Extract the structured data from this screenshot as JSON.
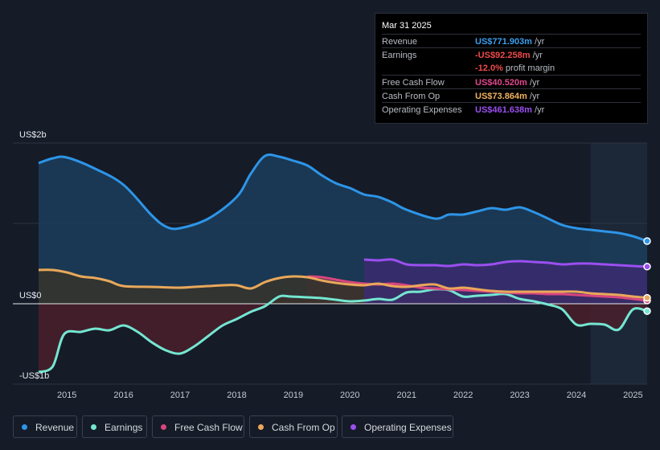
{
  "tooltip": {
    "date": "Mar 31 2025",
    "rows": [
      {
        "label": "Revenue",
        "value": "US$771.903m",
        "unit": "/yr",
        "color": "#3aa0ef"
      },
      {
        "label": "Earnings",
        "value": "-US$92.258m",
        "unit": "/yr",
        "color": "#ef4a4a"
      },
      {
        "label": "",
        "value": "-12.0%",
        "unit": "profit margin",
        "color": "#ef4a4a"
      },
      {
        "label": "Free Cash Flow",
        "value": "US$40.520m",
        "unit": "/yr",
        "color": "#e0488d"
      },
      {
        "label": "Cash From Op",
        "value": "US$73.864m",
        "unit": "/yr",
        "color": "#f0b060"
      },
      {
        "label": "Operating Expenses",
        "value": "US$461.638m",
        "unit": "/yr",
        "color": "#9b4ff0"
      }
    ]
  },
  "legend": [
    {
      "label": "Revenue",
      "color": "#2d95e8"
    },
    {
      "label": "Earnings",
      "color": "#74e6d1"
    },
    {
      "label": "Free Cash Flow",
      "color": "#d8467f"
    },
    {
      "label": "Cash From Op",
      "color": "#e9a85a"
    },
    {
      "label": "Operating Expenses",
      "color": "#9b4ff0"
    }
  ],
  "chart_data": {
    "type": "area",
    "y_unit": "US$ millions",
    "ylim": [
      -1000,
      2000
    ],
    "y_tick_labels": [
      {
        "value": 2000,
        "label": "US$2b"
      },
      {
        "value": 0,
        "label": "US$0"
      },
      {
        "value": -1000,
        "label": "-US$1b"
      }
    ],
    "xlim": [
      2014.5,
      2025.25
    ],
    "x_ticks": [
      2015,
      2016,
      2017,
      2018,
      2019,
      2020,
      2021,
      2022,
      2023,
      2024,
      2025
    ],
    "x_tick_labels": [
      "2015",
      "2016",
      "2017",
      "2018",
      "2019",
      "2020",
      "2021",
      "2022",
      "2023",
      "2024",
      "2025"
    ],
    "forecast_start": 2024.25,
    "series": [
      {
        "name": "Revenue",
        "color": "#2d95e8",
        "fill": "#1b3d5c",
        "x": [
          2014.5,
          2014.75,
          2015.0,
          2015.5,
          2016.0,
          2016.5,
          2016.75,
          2017.0,
          2017.5,
          2018.0,
          2018.25,
          2018.5,
          2018.75,
          2019.0,
          2019.25,
          2019.5,
          2019.75,
          2020.0,
          2020.25,
          2020.5,
          2020.75,
          2021.0,
          2021.5,
          2021.75,
          2022.0,
          2022.25,
          2022.5,
          2022.75,
          2023.0,
          2023.25,
          2023.5,
          2023.75,
          2024.0,
          2024.25,
          2024.5,
          2024.75,
          2025.0,
          2025.25
        ],
        "values": [
          1750,
          1810,
          1820,
          1680,
          1480,
          1100,
          960,
          940,
          1060,
          1330,
          1620,
          1840,
          1830,
          1780,
          1720,
          1600,
          1500,
          1440,
          1360,
          1330,
          1260,
          1170,
          1060,
          1110,
          1110,
          1150,
          1190,
          1170,
          1200,
          1140,
          1060,
          980,
          940,
          920,
          900,
          880,
          840,
          780
        ]
      },
      {
        "name": "Earnings",
        "color": "#74e6d1",
        "fill": "#4a1f2c",
        "x": [
          2014.5,
          2014.75,
          2014.95,
          2015.25,
          2015.5,
          2015.75,
          2016.0,
          2016.25,
          2016.5,
          2016.75,
          2017.0,
          2017.25,
          2017.5,
          2017.75,
          2018.0,
          2018.25,
          2018.5,
          2018.75,
          2018.95,
          2019.25,
          2019.5,
          2019.75,
          2020.0,
          2020.25,
          2020.5,
          2020.75,
          2021.0,
          2021.25,
          2021.5,
          2021.75,
          2022.0,
          2022.25,
          2022.5,
          2022.75,
          2023.0,
          2023.25,
          2023.5,
          2023.75,
          2024.0,
          2024.25,
          2024.5,
          2024.75,
          2025.0,
          2025.25
        ],
        "values": [
          -850,
          -780,
          -380,
          -350,
          -310,
          -330,
          -270,
          -350,
          -480,
          -580,
          -620,
          -530,
          -400,
          -270,
          -190,
          -100,
          -30,
          90,
          90,
          80,
          70,
          50,
          30,
          40,
          60,
          50,
          140,
          150,
          180,
          170,
          90,
          100,
          110,
          120,
          60,
          30,
          -10,
          -70,
          -260,
          -250,
          -260,
          -320,
          -70,
          -92
        ]
      },
      {
        "name": "Free Cash Flow",
        "color": "#d8467f",
        "fill": "#5a2b45",
        "x": [
          2019.25,
          2019.5,
          2019.75,
          2020.0,
          2020.25,
          2020.5,
          2020.75,
          2021.0,
          2021.25,
          2021.5,
          2021.75,
          2022.0,
          2022.25,
          2022.5,
          2022.75,
          2023.0,
          2023.25,
          2023.5,
          2023.75,
          2024.0,
          2024.25,
          2024.5,
          2024.75,
          2025.0,
          2025.25
        ],
        "values": [
          340,
          330,
          300,
          270,
          250,
          240,
          250,
          230,
          200,
          190,
          180,
          170,
          160,
          150,
          140,
          130,
          130,
          120,
          120,
          110,
          100,
          90,
          80,
          60,
          40
        ]
      },
      {
        "name": "Cash From Op",
        "color": "#e9a85a",
        "fill": "#36342c",
        "x": [
          2014.5,
          2014.75,
          2015.0,
          2015.25,
          2015.5,
          2015.75,
          2016.0,
          2016.5,
          2017.0,
          2017.25,
          2017.5,
          2017.75,
          2018.0,
          2018.25,
          2018.5,
          2018.75,
          2019.0,
          2019.25,
          2019.5,
          2019.75,
          2020.0,
          2020.25,
          2020.5,
          2020.75,
          2021.0,
          2021.25,
          2021.5,
          2021.75,
          2022.0,
          2022.25,
          2022.5,
          2022.75,
          2023.0,
          2023.25,
          2023.5,
          2023.75,
          2024.0,
          2024.25,
          2024.5,
          2024.75,
          2025.0,
          2025.25
        ],
        "values": [
          420,
          420,
          390,
          340,
          320,
          280,
          220,
          210,
          200,
          210,
          220,
          230,
          230,
          190,
          270,
          320,
          340,
          330,
          290,
          260,
          240,
          230,
          250,
          220,
          210,
          230,
          240,
          190,
          200,
          180,
          160,
          150,
          150,
          150,
          150,
          150,
          150,
          130,
          120,
          110,
          90,
          74
        ]
      },
      {
        "name": "Operating Expenses",
        "color": "#9b4ff0",
        "fill": "#3b2c70",
        "x": [
          2020.25,
          2020.5,
          2020.75,
          2021.0,
          2021.25,
          2021.5,
          2021.75,
          2022.0,
          2022.25,
          2022.5,
          2022.75,
          2023.0,
          2023.25,
          2023.5,
          2023.75,
          2024.0,
          2024.25,
          2024.5,
          2024.75,
          2025.0,
          2025.25
        ],
        "values": [
          550,
          540,
          550,
          490,
          480,
          480,
          470,
          490,
          480,
          490,
          520,
          530,
          520,
          510,
          490,
          500,
          500,
          490,
          480,
          470,
          462
        ]
      }
    ]
  }
}
